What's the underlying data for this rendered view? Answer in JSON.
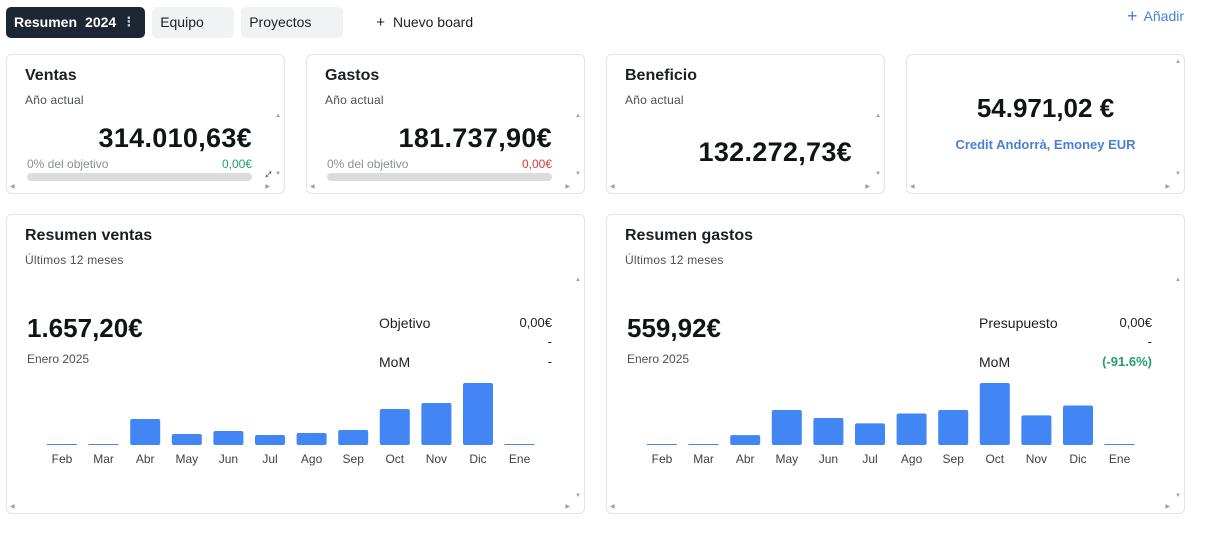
{
  "tabs": [
    {
      "label": "Resumen",
      "year": "2024",
      "active": true
    },
    {
      "label": "Equipo",
      "active": false
    },
    {
      "label": "Proyectos",
      "active": false
    }
  ],
  "new_board_label": "Nuevo board",
  "add_label": "Añadir",
  "kpis": {
    "ventas": {
      "title": "Ventas",
      "subtitle": "Año actual",
      "value": "314.010,63€",
      "pct_label": "0% del objetivo",
      "goal_amount": "0,00€",
      "progress": 0
    },
    "gastos": {
      "title": "Gastos",
      "subtitle": "Año actual",
      "value": "181.737,90€",
      "pct_label": "0% del objetivo",
      "goal_amount": "0,00€",
      "progress": 0
    },
    "beneficio": {
      "title": "Beneficio",
      "subtitle": "Año actual",
      "value": "132.272,73€"
    },
    "balance": {
      "value": "54.971,02 €",
      "accounts": "Credit Andorrà, Emoney EUR"
    }
  },
  "sales_summary": {
    "title": "Resumen ventas",
    "subtitle": "Últimos 12 meses",
    "value": "1.657,20€",
    "period": "Enero 2025",
    "stats": [
      {
        "label": "Objetivo",
        "value": "0,00€",
        "sub": "-"
      },
      {
        "label": "MoM",
        "value": "-"
      }
    ]
  },
  "expenses_summary": {
    "title": "Resumen gastos",
    "subtitle": "Últimos 12 meses",
    "value": "559,92€",
    "period": "Enero 2025",
    "stats": [
      {
        "label": "Presupuesto",
        "value": "0,00€",
        "sub": "-"
      },
      {
        "label": "MoM",
        "value": "(-91.6%)"
      }
    ]
  },
  "colors": {
    "accent": "#4285f4",
    "link": "#4a7fd6",
    "positive": "#22a06b",
    "negative": "#d63a3a",
    "tab_active_bg": "#1d2733"
  },
  "chart_data": [
    {
      "type": "bar",
      "categories": [
        "Feb",
        "Mar",
        "Abr",
        "May",
        "Jun",
        "Jul",
        "Ago",
        "Sep",
        "Oct",
        "Nov",
        "Dic",
        "Ene"
      ],
      "values": [
        0,
        0,
        26,
        11,
        14,
        10,
        12,
        15,
        36,
        42,
        62,
        1
      ],
      "max": 62
    },
    {
      "type": "bar",
      "categories": [
        "Feb",
        "Mar",
        "Abr",
        "May",
        "Jun",
        "Jul",
        "Ago",
        "Sep",
        "Oct",
        "Nov",
        "Dic",
        "Ene"
      ],
      "values": [
        0,
        1,
        11,
        39,
        30,
        24,
        35,
        39,
        69,
        33,
        44,
        0.5
      ],
      "max": 69
    }
  ]
}
